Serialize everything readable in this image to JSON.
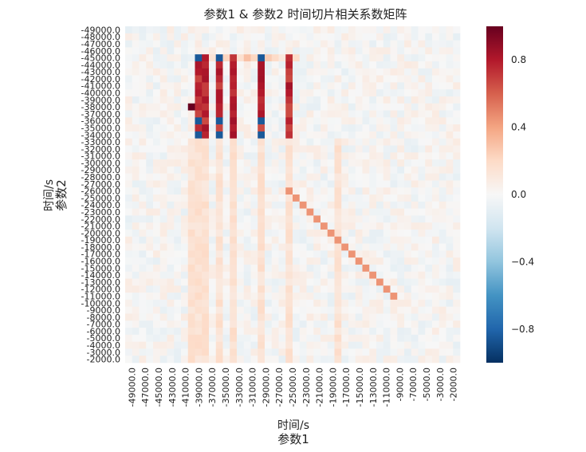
{
  "chart_data": {
    "type": "heatmap",
    "title": "参数1 & 参数2    时间切片相关系数矩阵",
    "xlabel_main": "参数1",
    "xlabel_sub": "时间/s",
    "ylabel_main": "参数2",
    "ylabel_sub": "时间/s",
    "x_ticks": [
      "-49000.0",
      "-47000.0",
      "-45000.0",
      "-43000.0",
      "-41000.0",
      "-39000.0",
      "-37000.0",
      "-35000.0",
      "-33000.0",
      "-31000.0",
      "-29000.0",
      "-27000.0",
      "-25000.0",
      "-23000.0",
      "-21000.0",
      "-19000.0",
      "-17000.0",
      "-15000.0",
      "-13000.0",
      "-11000.0",
      "-9000.0",
      "-7000.0",
      "-5000.0",
      "-3000.0",
      "-2000.0"
    ],
    "y_ticks": [
      "-49000.0",
      "-48000.0",
      "-47000.0",
      "-46000.0",
      "-45000.0",
      "-44000.0",
      "-43000.0",
      "-42000.0",
      "-41000.0",
      "-40000.0",
      "-39000.0",
      "-38000.0",
      "-37000.0",
      "-36000.0",
      "-35000.0",
      "-34000.0",
      "-33000.0",
      "-32000.0",
      "-31000.0",
      "-30000.0",
      "-29000.0",
      "-28000.0",
      "-27000.0",
      "-26000.0",
      "-25000.0",
      "-24000.0",
      "-23000.0",
      "-22000.0",
      "-21000.0",
      "-20000.0",
      "-19000.0",
      "-18000.0",
      "-17000.0",
      "-16000.0",
      "-15000.0",
      "-14000.0",
      "-13000.0",
      "-12000.0",
      "-11000.0",
      "-10000.0",
      "-9000.0",
      "-8000.0",
      "-7000.0",
      "-6000.0",
      "-5000.0",
      "-4000.0",
      "-3000.0",
      "-2000.0"
    ],
    "grid": false,
    "colorbar": {
      "colormap": "RdBu_r",
      "vmin": -1,
      "vmax": 1,
      "ticks": [
        0.8,
        0.4,
        0.0,
        -0.4,
        -0.8
      ],
      "tick_labels": [
        "0.8",
        "0.4",
        "0.0",
        "−0.4",
        "−0.8"
      ],
      "colors": [
        "#053061",
        "#2166ac",
        "#4393c3",
        "#92c5de",
        "#d1e5f0",
        "#f7f7f7",
        "#fddbc7",
        "#f4a582",
        "#d6604d",
        "#b2182b",
        "#67001f"
      ]
    },
    "matrix_size": 48,
    "strong_x_index": 9,
    "strong_y_index": 11,
    "highlight_rows": [
      4,
      15
    ],
    "highlight_cols": [
      10,
      24
    ],
    "diagonal_segment": [
      23,
      38
    ],
    "value_levels": {
      "peak": 1.0,
      "high": 0.75,
      "medium": 0.4,
      "low": 0.15,
      "negative_strong": -0.85,
      "negative": -0.4
    }
  }
}
